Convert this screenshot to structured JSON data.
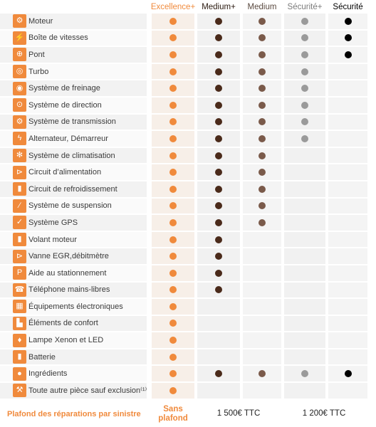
{
  "colors": {
    "orange": "#f08a3c",
    "dark_brown": "#4a2a1a",
    "brown": "#7a5a4a",
    "gray": "#9a9a9a",
    "black": "#000000"
  },
  "header": {
    "excellence_plus": "Excellence+",
    "medium_plus": "Medium+",
    "medium": "Medium",
    "securite_plus": "Sécurité+",
    "securite": "Sécurité"
  },
  "rows": [
    {
      "label": "Moteur",
      "icon": "engine-icon",
      "glyph": "⚙",
      "cov": [
        1,
        1,
        1,
        1,
        1
      ]
    },
    {
      "label": "Boîte de vitesses",
      "icon": "gearbox-icon",
      "glyph": "⚡",
      "cov": [
        1,
        1,
        1,
        1,
        1
      ]
    },
    {
      "label": "Pont",
      "icon": "axle-icon",
      "glyph": "⊕",
      "cov": [
        1,
        1,
        1,
        1,
        1
      ]
    },
    {
      "label": "Turbo",
      "icon": "turbo-icon",
      "glyph": "◎",
      "cov": [
        1,
        1,
        1,
        1,
        0
      ]
    },
    {
      "label": "Système de freinage",
      "icon": "brake-icon",
      "glyph": "◉",
      "cov": [
        1,
        1,
        1,
        1,
        0
      ]
    },
    {
      "label": "Système de direction",
      "icon": "steering-icon",
      "glyph": "⊙",
      "cov": [
        1,
        1,
        1,
        1,
        0
      ]
    },
    {
      "label": "Système de transmission",
      "icon": "transmission-icon",
      "glyph": "⚙",
      "cov": [
        1,
        1,
        1,
        1,
        0
      ]
    },
    {
      "label": "Alternateur, Démarreur",
      "icon": "alternator-icon",
      "glyph": "ϟ",
      "cov": [
        1,
        1,
        1,
        1,
        0
      ]
    },
    {
      "label": "Système de climatisation",
      "icon": "air-conditioning-icon",
      "glyph": "✻",
      "cov": [
        1,
        1,
        1,
        0,
        0
      ]
    },
    {
      "label": "Circuit d’alimentation",
      "icon": "fuel-circuit-icon",
      "glyph": "⊳",
      "cov": [
        1,
        1,
        1,
        0,
        0
      ]
    },
    {
      "label": "Circuit de refroidissement",
      "icon": "cooling-icon",
      "glyph": "▮",
      "cov": [
        1,
        1,
        1,
        0,
        0
      ]
    },
    {
      "label": "Système de suspension",
      "icon": "suspension-icon",
      "glyph": "∕",
      "cov": [
        1,
        1,
        1,
        0,
        0
      ]
    },
    {
      "label": "Système GPS",
      "icon": "gps-icon",
      "glyph": "✓",
      "cov": [
        1,
        1,
        1,
        0,
        0
      ]
    },
    {
      "label": "Volant moteur",
      "icon": "flywheel-icon",
      "glyph": "▮",
      "cov": [
        1,
        1,
        0,
        0,
        0
      ]
    },
    {
      "label": "Vanne EGR,débitmètre",
      "icon": "egr-valve-icon",
      "glyph": "⊳",
      "cov": [
        1,
        1,
        0,
        0,
        0
      ]
    },
    {
      "label": "Aide au stationnement",
      "icon": "parking-icon",
      "glyph": "P",
      "cov": [
        1,
        1,
        0,
        0,
        0
      ]
    },
    {
      "label": "Téléphone mains-libres",
      "icon": "phone-icon",
      "glyph": "☎",
      "cov": [
        1,
        1,
        0,
        0,
        0
      ]
    },
    {
      "label": "Équipements électroniques",
      "icon": "electronics-icon",
      "glyph": "▦",
      "cov": [
        1,
        0,
        0,
        0,
        0
      ]
    },
    {
      "label": "Éléments de confort",
      "icon": "comfort-seat-icon",
      "glyph": "▙",
      "cov": [
        1,
        0,
        0,
        0,
        0
      ]
    },
    {
      "label": "Lampe Xenon et LED",
      "icon": "lamp-icon",
      "glyph": "♦",
      "cov": [
        1,
        0,
        0,
        0,
        0
      ]
    },
    {
      "label": "Batterie",
      "icon": "battery-icon",
      "glyph": "▮",
      "cov": [
        1,
        0,
        0,
        0,
        0
      ]
    },
    {
      "label": "Ingrédients",
      "icon": "fluid-drop-icon",
      "glyph": "●",
      "cov": [
        1,
        1,
        1,
        1,
        1
      ]
    },
    {
      "label": "Toute autre pièce sauf exclusion⁽¹⁾",
      "icon": "other-parts-icon",
      "glyph": "⚒",
      "cov": [
        1,
        0,
        0,
        0,
        0
      ]
    }
  ],
  "footer": {
    "label": "Plafond des réparations par sinistre",
    "sans_line1": "Sans",
    "sans_line2": "plafond",
    "medium_value": "1 500€ TTC",
    "securite_value": "1 200€ TTC"
  }
}
